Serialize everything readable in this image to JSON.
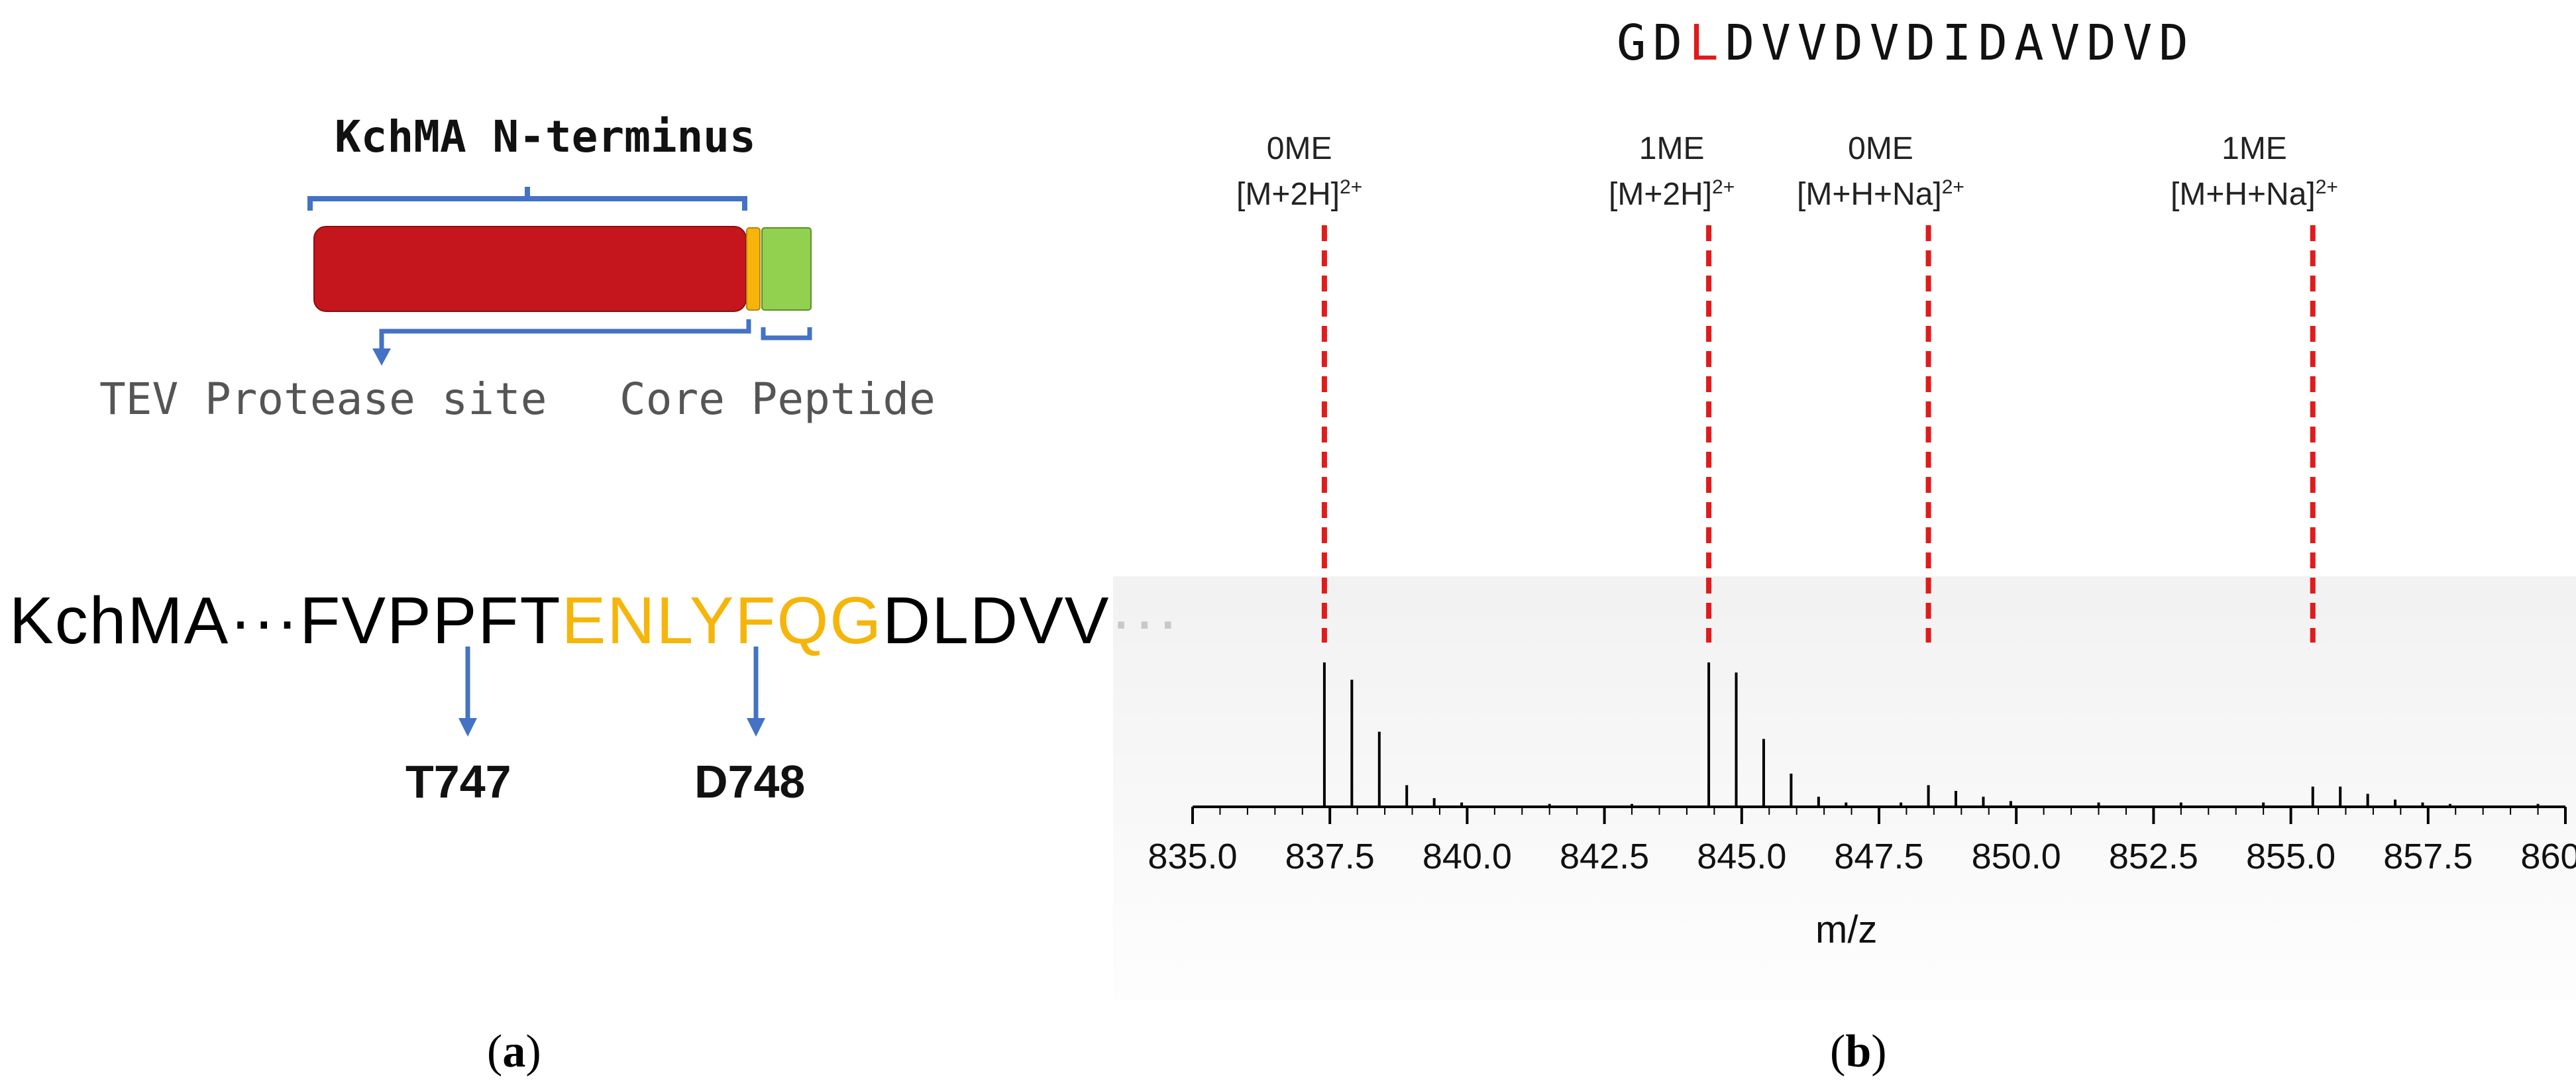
{
  "panel_a": {
    "title": "KchMA N-terminus",
    "label_tev": "TEV Protease site",
    "label_core": "Core Peptide",
    "seq_prefix": "KchMA···FVPPFT",
    "seq_highlight": "ENLYFQG",
    "seq_suffix": "DLDVV···",
    "site_left": "T747",
    "site_right": "D748",
    "panel_label": "a",
    "colors": {
      "domain_red": "#c4161c",
      "linker_orange": "#f5b50a",
      "core_green": "#92d050",
      "bracket_blue": "#4472c4"
    }
  },
  "panel_b": {
    "peptide_pre": "GD",
    "peptide_mod": "L",
    "peptide_post": "DVVDVDIDAVDVD",
    "panel_label": "b",
    "xlabel": "m/z",
    "ann1_top": "0ME",
    "ann1_bot": "[M+2H]",
    "ann1_sup": "2+",
    "ann2_top": "1ME",
    "ann2_bot": "[M+2H]",
    "ann2_sup": "2+",
    "ann3_top": "0ME",
    "ann3_bot": "[M+H+Na]",
    "ann3_sup": "2+",
    "ann4_top": "1ME",
    "ann4_bot": "[M+H+Na]",
    "ann4_sup": "2+",
    "ticks": [
      "835.0",
      "837.5",
      "840.0",
      "842.5",
      "845.0",
      "847.5",
      "850.0",
      "852.5",
      "855.0",
      "857.5",
      "860.0"
    ]
  },
  "chart_data": {
    "type": "line",
    "title": "GDLDVVDVDIDAVDVD",
    "xlabel": "m/z",
    "ylabel": "",
    "xlim": [
      835.0,
      860.0
    ],
    "grid": false,
    "annotations": [
      {
        "label": "0ME [M+2H]2+",
        "x": 837.4
      },
      {
        "label": "1ME [M+2H]2+",
        "x": 844.4
      },
      {
        "label": "0ME [M+H+Na]2+",
        "x": 848.4
      },
      {
        "label": "1ME [M+H+Na]2+",
        "x": 855.4
      }
    ],
    "series": [
      {
        "name": "spectrum",
        "x": [
          837.4,
          837.9,
          838.4,
          838.9,
          839.4,
          839.9,
          841.5,
          843.0,
          844.4,
          844.9,
          845.4,
          845.9,
          846.4,
          846.9,
          847.9,
          848.4,
          848.9,
          849.4,
          849.9,
          851.5,
          853.0,
          854.5,
          855.4,
          855.9,
          856.4,
          856.9,
          857.4,
          857.9,
          859.5
        ],
        "values": [
          100,
          88,
          52,
          15,
          6,
          3,
          2,
          2,
          100,
          93,
          47,
          23,
          7,
          3,
          3,
          15,
          11,
          7,
          4,
          3,
          3,
          3,
          14,
          14,
          9,
          5,
          3,
          2,
          2
        ]
      }
    ]
  }
}
